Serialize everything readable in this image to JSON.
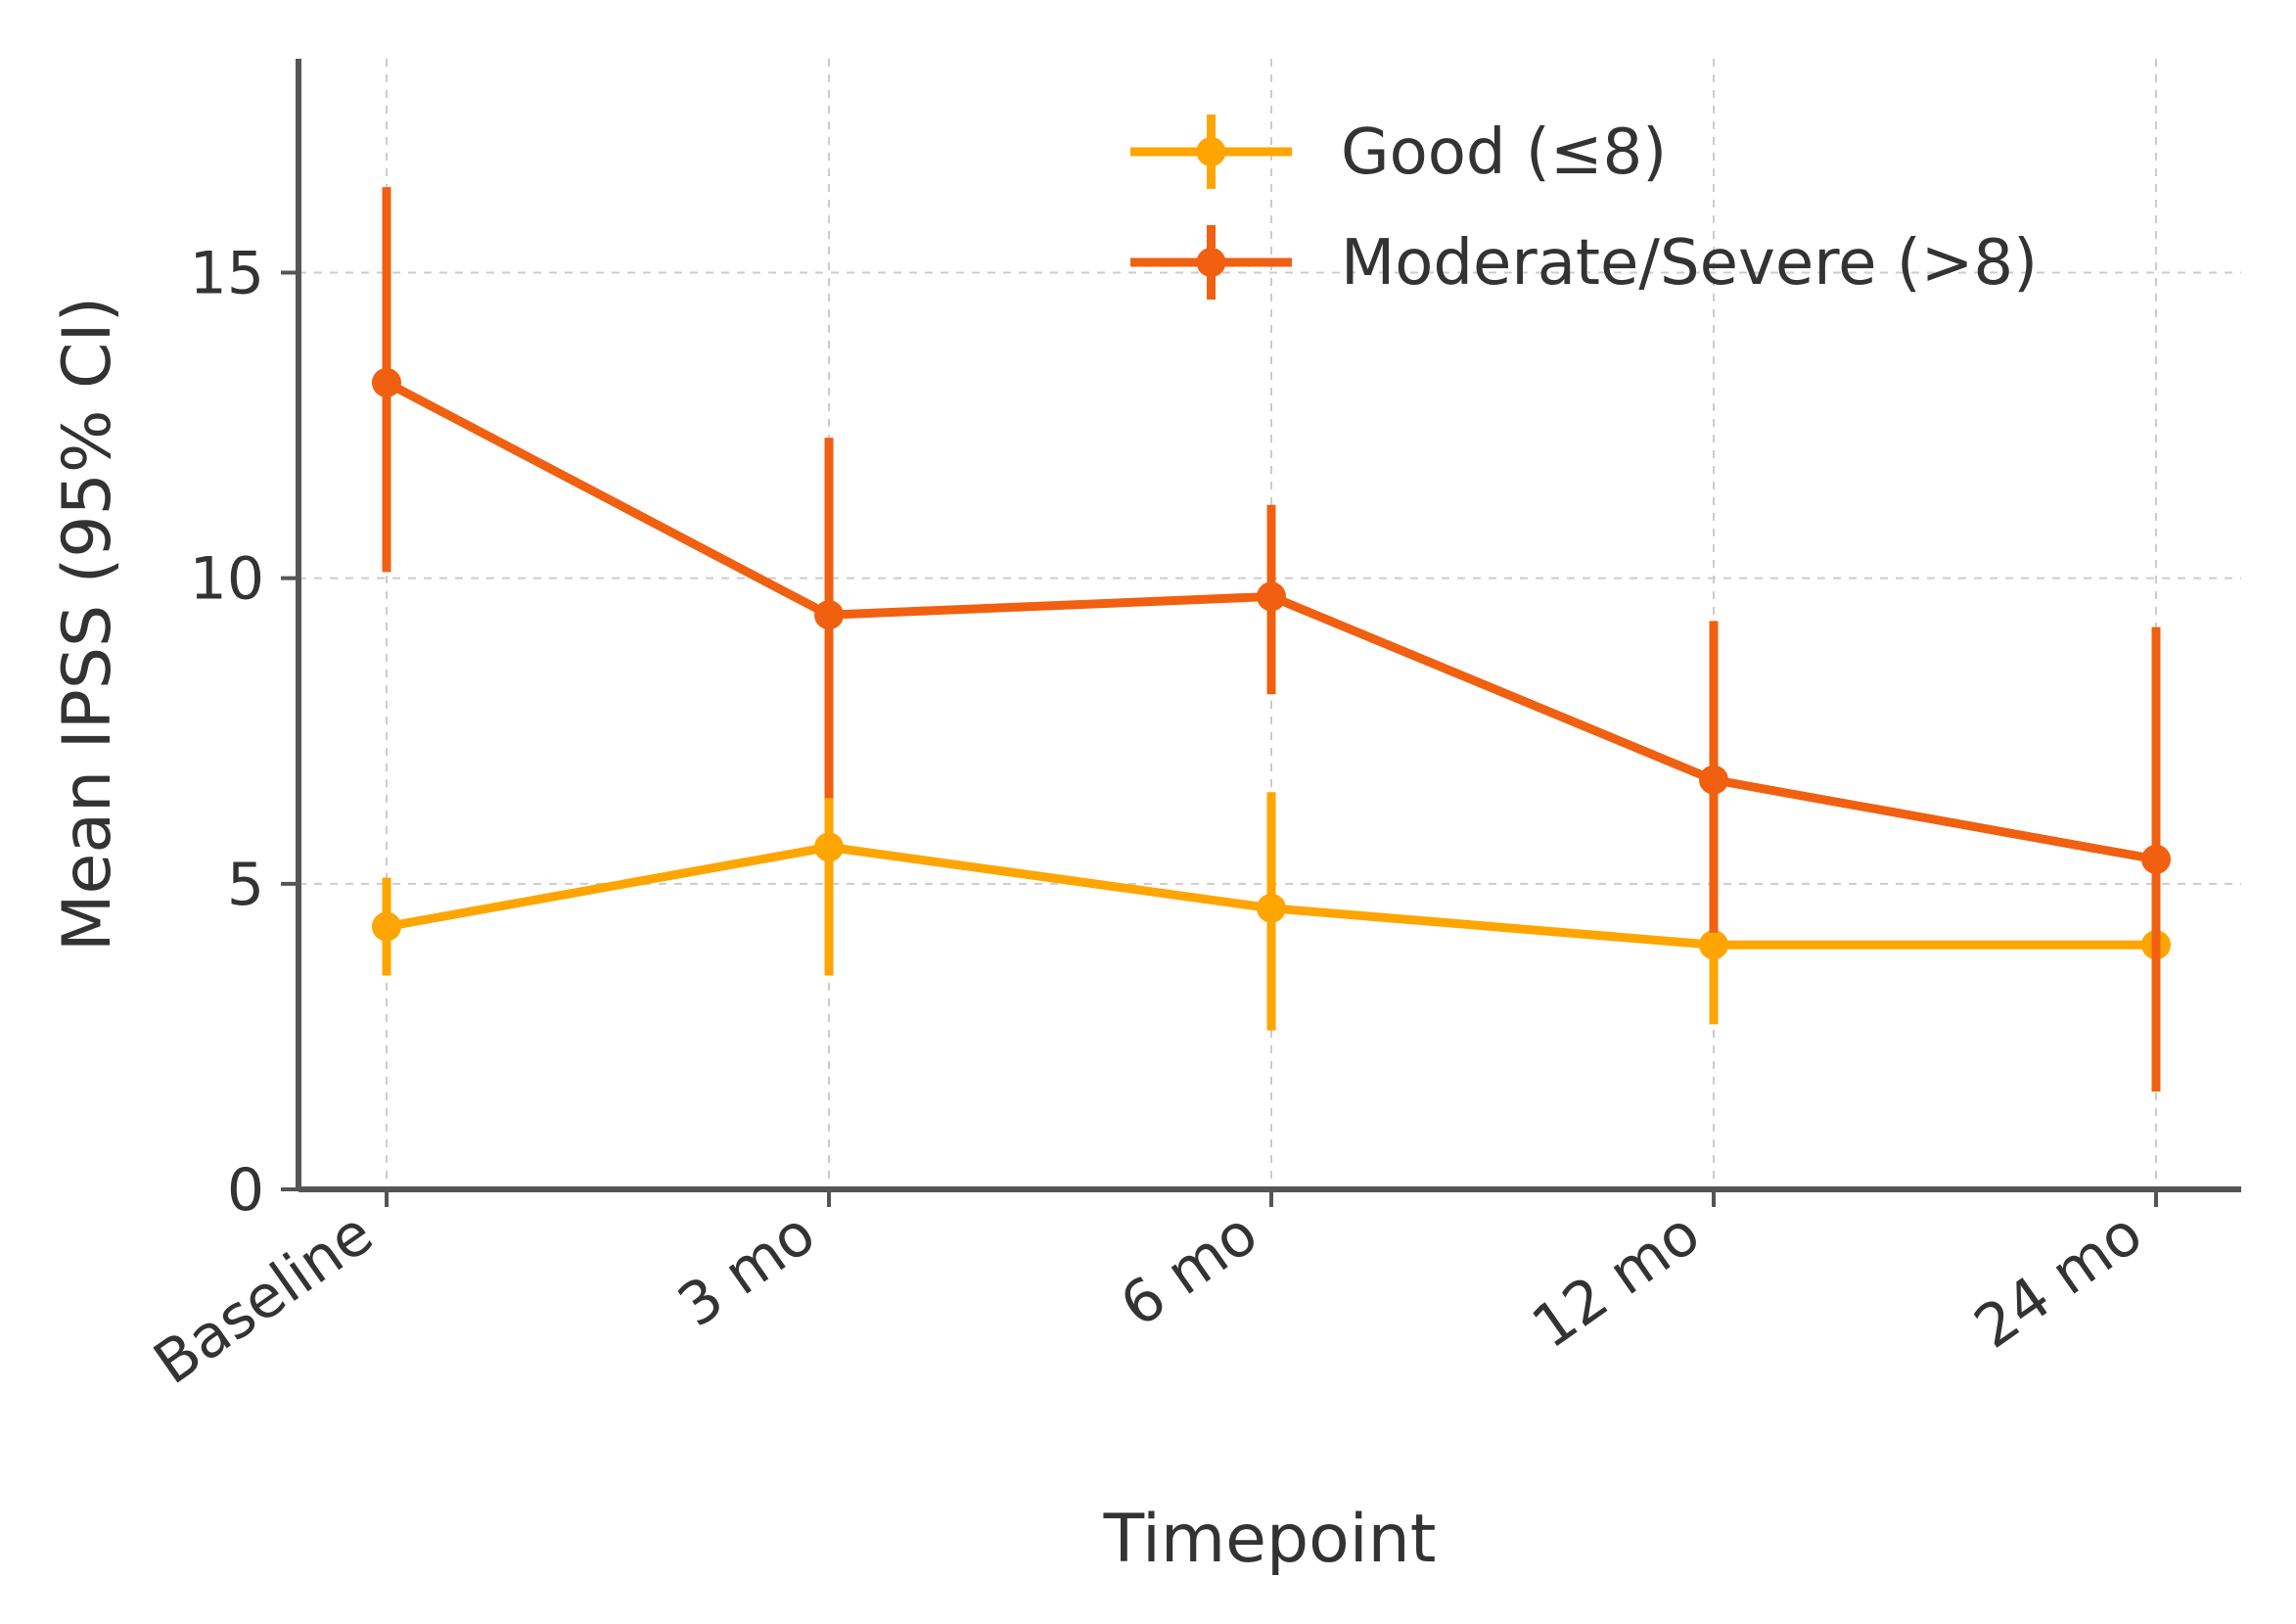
{
  "chart_data": {
    "type": "line",
    "title": "",
    "xlabel": "Timepoint",
    "ylabel": "Mean IPSS (95% CI)",
    "categories": [
      "Baseline",
      "3 mo",
      "6 mo",
      "12 mo",
      "24 mo"
    ],
    "ylim": [
      0,
      18.5
    ],
    "yticks": [
      0,
      5,
      10,
      15
    ],
    "grid": true,
    "legend_position": "top-right",
    "series": [
      {
        "name": "Good (≤8)",
        "color": "#FFA500",
        "values": [
          4.3,
          5.6,
          4.6,
          4.0,
          4.0
        ],
        "ci_low": [
          3.5,
          3.5,
          2.6,
          2.7,
          3.2
        ],
        "ci_high": [
          5.1,
          6.5,
          6.5,
          5.0,
          4.9
        ]
      },
      {
        "name": "Moderate/Severe (>8)",
        "color": "#F06010",
        "values": [
          13.2,
          9.4,
          9.7,
          6.7,
          5.4
        ],
        "ci_low": [
          10.1,
          6.4,
          8.1,
          4.2,
          1.6
        ],
        "ci_high": [
          16.4,
          12.3,
          11.2,
          9.3,
          9.2
        ]
      }
    ]
  }
}
